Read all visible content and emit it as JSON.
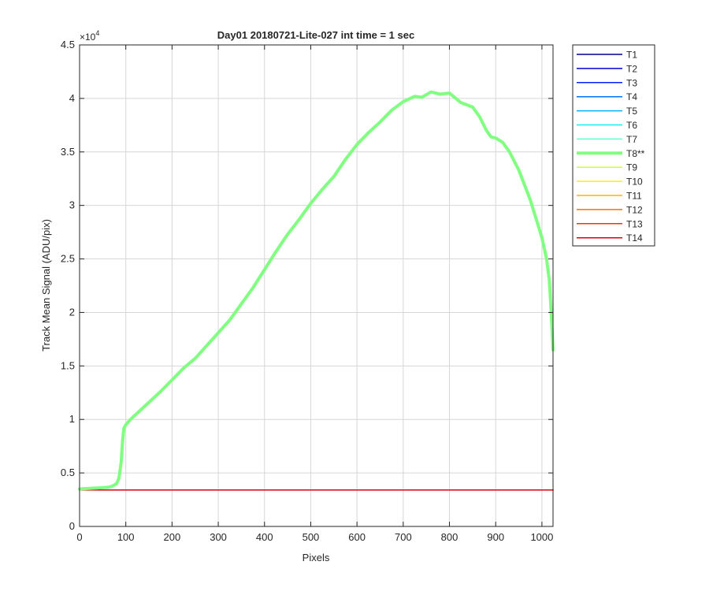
{
  "chart_data": {
    "type": "line",
    "title": "Day01 20180721-Lite-027 int time = 1 sec",
    "xlabel": "Pixels",
    "ylabel": "Track Mean Signal (ADU/pix)",
    "y_exponent_label": "×10",
    "y_exponent_power": "4",
    "y_scale_factor": 10000,
    "xlim": [
      0,
      1024
    ],
    "ylim": [
      0,
      45000
    ],
    "x_ticks": [
      0,
      100,
      200,
      300,
      400,
      500,
      600,
      700,
      800,
      900,
      1000
    ],
    "x_tick_labels": [
      "0",
      "100",
      "200",
      "300",
      "400",
      "500",
      "600",
      "700",
      "800",
      "900",
      "1000"
    ],
    "y_ticks": [
      0,
      5000,
      10000,
      15000,
      20000,
      25000,
      30000,
      35000,
      40000,
      45000
    ],
    "y_tick_labels": [
      "0",
      "0.5",
      "1",
      "1.5",
      "2",
      "2.5",
      "3",
      "3.5",
      "4",
      "4.5"
    ],
    "grid": true,
    "legend_position": "outside-right",
    "series": [
      {
        "name": "T1",
        "color": "#00008f",
        "x": [
          0,
          1024
        ],
        "y": [
          3400,
          3400
        ]
      },
      {
        "name": "T2",
        "color": "#0000d6",
        "x": [
          0,
          1024
        ],
        "y": [
          3400,
          3400
        ]
      },
      {
        "name": "T3",
        "color": "#0020ff",
        "x": [
          0,
          1024
        ],
        "y": [
          3400,
          3400
        ]
      },
      {
        "name": "T4",
        "color": "#0070ff",
        "x": [
          0,
          1024
        ],
        "y": [
          3400,
          3400
        ]
      },
      {
        "name": "T5",
        "color": "#00b0ff",
        "x": [
          0,
          1024
        ],
        "y": [
          3400,
          3400
        ]
      },
      {
        "name": "T6",
        "color": "#10efef",
        "x": [
          0,
          1024
        ],
        "y": [
          3400,
          3400
        ]
      },
      {
        "name": "T7",
        "color": "#5fffcf",
        "x": [
          0,
          1024
        ],
        "y": [
          3400,
          3400
        ]
      },
      {
        "name": "T8**",
        "color": "#80ff80",
        "highlight": true,
        "x": [
          0,
          20,
          40,
          60,
          70,
          80,
          85,
          90,
          93,
          96,
          100,
          110,
          130,
          150,
          175,
          200,
          225,
          250,
          275,
          300,
          325,
          350,
          375,
          400,
          425,
          450,
          475,
          500,
          525,
          550,
          575,
          600,
          625,
          650,
          675,
          700,
          725,
          740,
          760,
          780,
          800,
          825,
          850,
          865,
          880,
          890,
          900,
          915,
          930,
          950,
          975,
          1000,
          1010,
          1016,
          1020,
          1024
        ],
        "y": [
          3500,
          3550,
          3600,
          3650,
          3750,
          4000,
          4500,
          6000,
          8000,
          9200,
          9500,
          10000,
          10800,
          11600,
          12600,
          13700,
          14800,
          15700,
          16900,
          18100,
          19300,
          20800,
          22300,
          24000,
          25700,
          27300,
          28700,
          30200,
          31500,
          32700,
          34300,
          35700,
          36800,
          37800,
          38900,
          39700,
          40200,
          40100,
          40600,
          40400,
          40500,
          39600,
          39200,
          38300,
          37000,
          36400,
          36300,
          35900,
          35000,
          33300,
          30500,
          27000,
          25000,
          23000,
          20000,
          16500
        ]
      },
      {
        "name": "T9",
        "color": "#cfff30",
        "x": [
          0,
          1024
        ],
        "y": [
          3400,
          3400
        ]
      },
      {
        "name": "T10",
        "color": "#ffef00",
        "x": [
          0,
          1024
        ],
        "y": [
          3400,
          3400
        ]
      },
      {
        "name": "T11",
        "color": "#ffb000",
        "x": [
          0,
          1024
        ],
        "y": [
          3400,
          3400
        ]
      },
      {
        "name": "T12",
        "color": "#ff7000",
        "x": [
          0,
          1024
        ],
        "y": [
          3400,
          3400
        ]
      },
      {
        "name": "T13",
        "color": "#ff3000",
        "x": [
          0,
          1024
        ],
        "y": [
          3400,
          3400
        ]
      },
      {
        "name": "T14",
        "color": "#df0000",
        "x": [
          0,
          1024
        ],
        "y": [
          3400,
          3400
        ]
      }
    ]
  }
}
